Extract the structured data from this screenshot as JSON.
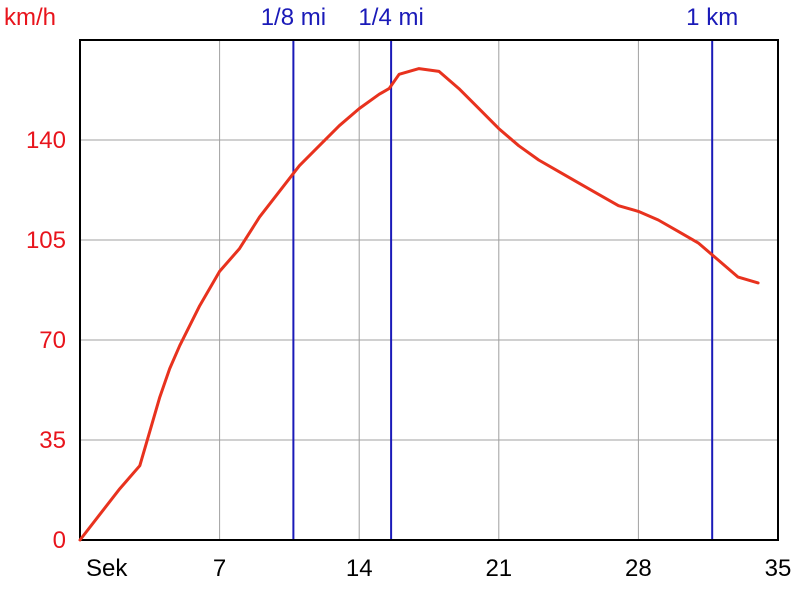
{
  "chart_data": {
    "type": "line",
    "ylabel": "km/h",
    "xlabel": "Sek",
    "xlim": [
      0,
      35
    ],
    "ylim": [
      0,
      175
    ],
    "xticks": [
      7,
      14,
      21,
      28,
      35
    ],
    "yticks": [
      0,
      35,
      70,
      105,
      140
    ],
    "grid": true,
    "colors": {
      "line": "#e8321e",
      "grid": "#a0a0a0",
      "marker": "#1a1ab8",
      "ytick": "#e8141c",
      "xtick": "#000000"
    },
    "markers": [
      {
        "label": "1/8 mi",
        "x": 10.7
      },
      {
        "label": "1/4 mi",
        "x": 15.6
      },
      {
        "label": "1 km",
        "x": 31.7
      }
    ],
    "series": [
      {
        "x": [
          0,
          1,
          2,
          3,
          3.5,
          4,
          4.5,
          5,
          6,
          7,
          8,
          9,
          10,
          11,
          12,
          13,
          14,
          15,
          15.5,
          16,
          17,
          18,
          19,
          20,
          21,
          22,
          23,
          24,
          25,
          26,
          27,
          28,
          29,
          30,
          31,
          32,
          33,
          34
        ],
        "y": [
          0,
          9,
          18,
          26,
          38,
          50,
          60,
          68,
          82,
          94,
          102,
          113,
          122,
          131,
          138,
          145,
          151,
          156,
          158,
          163,
          165,
          164,
          158,
          151,
          144,
          138,
          133,
          129,
          125,
          121,
          117,
          115,
          112,
          108,
          104,
          98,
          92,
          90
        ]
      }
    ]
  }
}
